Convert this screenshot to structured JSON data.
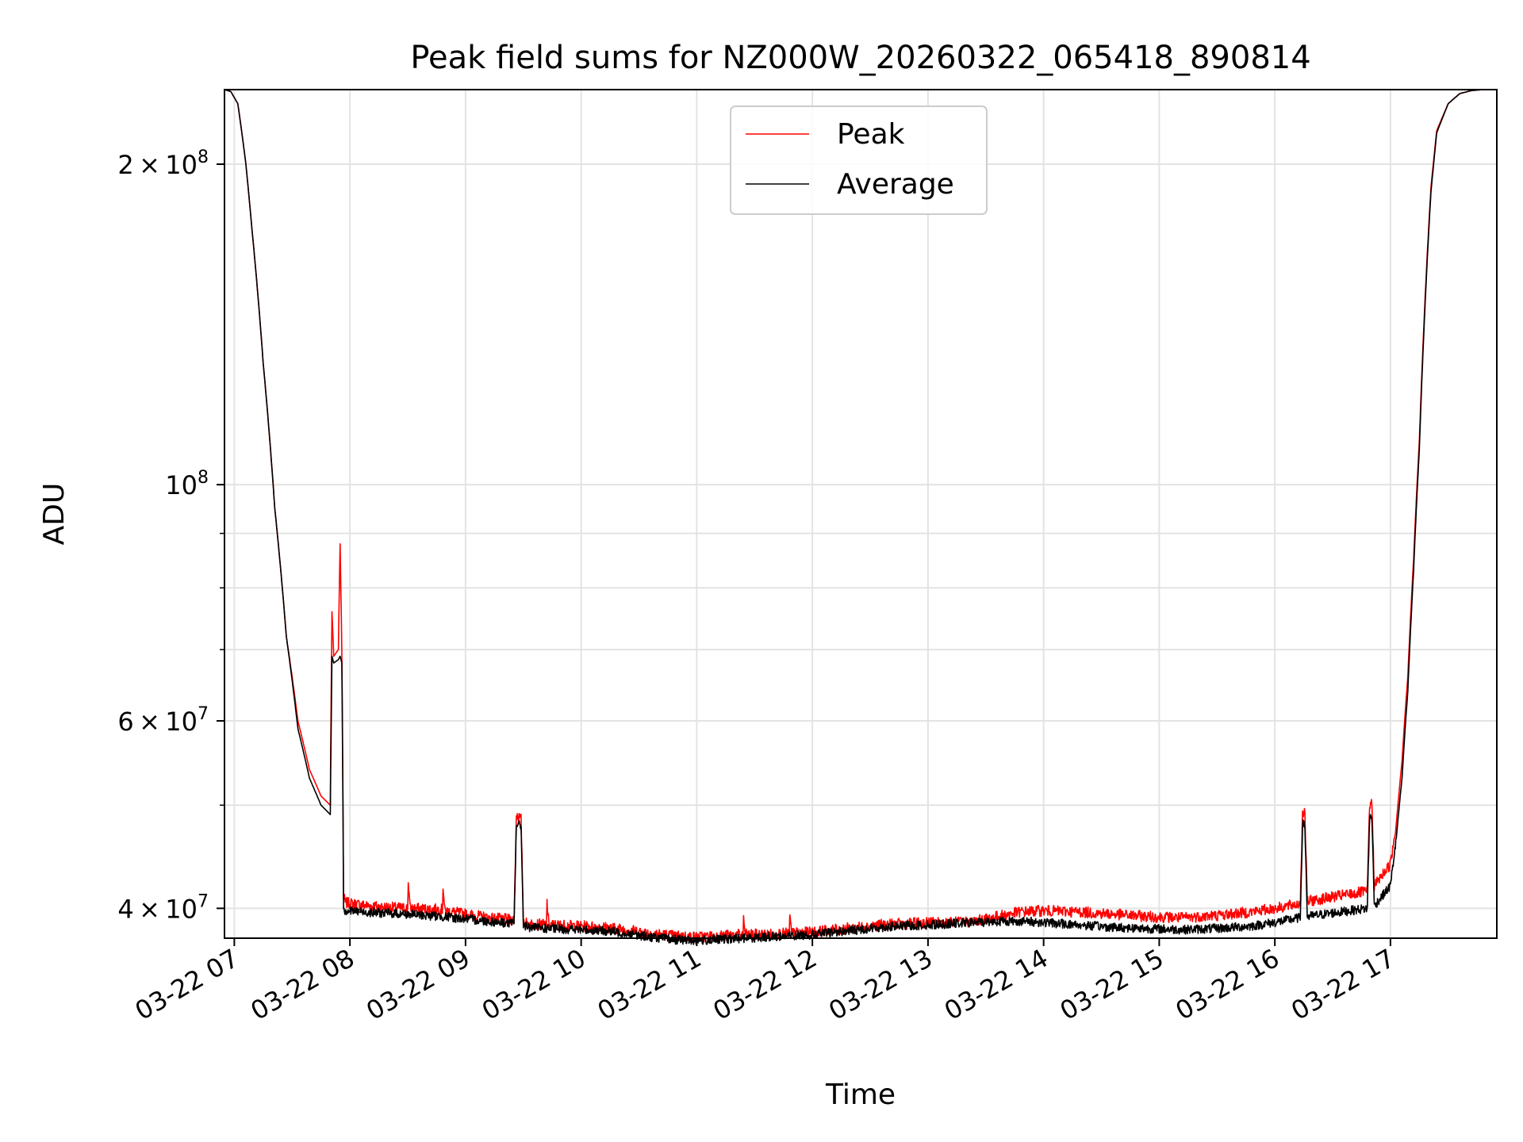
{
  "chart_data": {
    "type": "line",
    "title": "Peak field sums for NZ000W_20260322_065418_890814",
    "xlabel": "Time",
    "ylabel": "ADU",
    "yscale": "log",
    "ylim": [
      37500000,
      235000000
    ],
    "xlim_hours": [
      6.915,
      17.92
    ],
    "grid": true,
    "legend_position": "upper center",
    "x_ticks": [
      {
        "value": 7,
        "label": "03-22 07"
      },
      {
        "value": 8,
        "label": "03-22 08"
      },
      {
        "value": 9,
        "label": "03-22 09"
      },
      {
        "value": 10,
        "label": "03-22 10"
      },
      {
        "value": 11,
        "label": "03-22 11"
      },
      {
        "value": 12,
        "label": "03-22 12"
      },
      {
        "value": 13,
        "label": "03-22 13"
      },
      {
        "value": 14,
        "label": "03-22 14"
      },
      {
        "value": 15,
        "label": "03-22 15"
      },
      {
        "value": 16,
        "label": "03-22 16"
      },
      {
        "value": 17,
        "label": "03-22 17"
      }
    ],
    "y_major_ticks": [
      {
        "value": 40000000,
        "mantissa": "4",
        "exponent": "7"
      },
      {
        "value": 60000000,
        "mantissa": "6",
        "exponent": "7"
      },
      {
        "value": 100000000,
        "mantissa": "",
        "exponent": "8"
      },
      {
        "value": 200000000,
        "mantissa": "2",
        "exponent": "8"
      }
    ],
    "y_minor_ticks": [
      50000000,
      70000000,
      80000000,
      90000000
    ],
    "series": [
      {
        "name": "Peak",
        "color": "#ff0000",
        "x": [
          6.915,
          6.97,
          7.03,
          7.1,
          7.15,
          7.25,
          7.35,
          7.45,
          7.55,
          7.65,
          7.75,
          7.83,
          7.845,
          7.86,
          7.9,
          7.915,
          7.93,
          7.945,
          7.96,
          8.1,
          8.3,
          8.5,
          8.505,
          8.52,
          8.8,
          8.805,
          8.82,
          9.2,
          9.42,
          9.44,
          9.48,
          9.5,
          9.53,
          9.7,
          9.705,
          9.72,
          10.0,
          10.2,
          10.4,
          10.6,
          10.8,
          11.0,
          11.2,
          11.4,
          11.405,
          11.42,
          11.6,
          11.8,
          11.805,
          11.82,
          12.0,
          12.2,
          12.4,
          12.6,
          12.8,
          13.0,
          13.2,
          13.4,
          13.6,
          13.8,
          14.0,
          14.3,
          14.6,
          14.9,
          15.2,
          15.5,
          15.8,
          16.0,
          16.22,
          16.24,
          16.26,
          16.28,
          16.5,
          16.8,
          16.82,
          16.84,
          16.86,
          17.0,
          17.05,
          17.1,
          17.15,
          17.2,
          17.25,
          17.3,
          17.35,
          17.4,
          17.5,
          17.6,
          17.7,
          17.8,
          17.92
        ],
        "values": [
          235000000,
          234000000,
          228000000,
          200000000,
          175000000,
          130000000,
          95000000,
          72000000,
          60000000,
          54000000,
          51000000,
          50000000,
          76000000,
          69000000,
          70000000,
          88000000,
          70000000,
          41000000,
          40500000,
          40300000,
          40100000,
          40000000,
          42500000,
          40000000,
          39900000,
          42000000,
          39800000,
          39200000,
          39000000,
          49000000,
          48500000,
          39000000,
          38700000,
          38600000,
          40500000,
          38600000,
          38500000,
          38400000,
          38200000,
          37900000,
          37700000,
          37600000,
          37700000,
          37800000,
          39000000,
          37800000,
          37800000,
          37900000,
          39200000,
          37900000,
          38000000,
          38200000,
          38400000,
          38600000,
          38700000,
          38800000,
          38800000,
          38900000,
          39300000,
          39700000,
          39800000,
          39700000,
          39500000,
          39300000,
          39200000,
          39400000,
          39700000,
          40000000,
          40400000,
          49300000,
          49000000,
          40600000,
          41000000,
          41500000,
          50200000,
          50000000,
          42000000,
          44000000,
          48000000,
          55000000,
          66000000,
          85000000,
          110000000,
          150000000,
          190000000,
          215000000,
          228000000,
          233000000,
          234500000,
          235000000,
          235000000
        ]
      },
      {
        "name": "Average",
        "color": "#000000",
        "x": [
          6.915,
          6.97,
          7.03,
          7.1,
          7.15,
          7.25,
          7.35,
          7.45,
          7.55,
          7.65,
          7.75,
          7.83,
          7.845,
          7.86,
          7.9,
          7.915,
          7.93,
          7.945,
          7.96,
          8.1,
          8.3,
          8.5,
          8.8,
          9.2,
          9.42,
          9.44,
          9.48,
          9.5,
          9.53,
          9.7,
          10.0,
          10.2,
          10.4,
          10.6,
          10.8,
          11.0,
          11.2,
          11.4,
          11.6,
          11.8,
          12.0,
          12.2,
          12.4,
          12.6,
          12.8,
          13.0,
          13.2,
          13.4,
          13.6,
          13.8,
          14.0,
          14.3,
          14.6,
          14.9,
          15.2,
          15.5,
          15.8,
          16.0,
          16.22,
          16.24,
          16.26,
          16.28,
          16.5,
          16.8,
          16.82,
          16.84,
          16.86,
          17.0,
          17.05,
          17.1,
          17.15,
          17.2,
          17.25,
          17.3,
          17.35,
          17.4,
          17.5,
          17.6,
          17.7,
          17.8,
          17.92
        ],
        "values": [
          235000000,
          234000000,
          228000000,
          200000000,
          175000000,
          130000000,
          95000000,
          72000000,
          59000000,
          53000000,
          50000000,
          49000000,
          69000000,
          68000000,
          68500000,
          69000000,
          68000000,
          40000000,
          39800000,
          39700000,
          39600000,
          39500000,
          39300000,
          38900000,
          38700000,
          48000000,
          47800000,
          38700000,
          38400000,
          38300000,
          38200000,
          38100000,
          37900000,
          37600000,
          37400000,
          37300000,
          37400000,
          37500000,
          37600000,
          37700000,
          37800000,
          38000000,
          38200000,
          38400000,
          38500000,
          38600000,
          38700000,
          38800000,
          38900000,
          38900000,
          38800000,
          38600000,
          38400000,
          38300000,
          38200000,
          38300000,
          38500000,
          38800000,
          39200000,
          48000000,
          47800000,
          39300000,
          39600000,
          40000000,
          48800000,
          48600000,
          40200000,
          42000000,
          46500000,
          53000000,
          64000000,
          83000000,
          108000000,
          148000000,
          188000000,
          214000000,
          228000000,
          233000000,
          234500000,
          235000000,
          235000000
        ]
      }
    ]
  }
}
